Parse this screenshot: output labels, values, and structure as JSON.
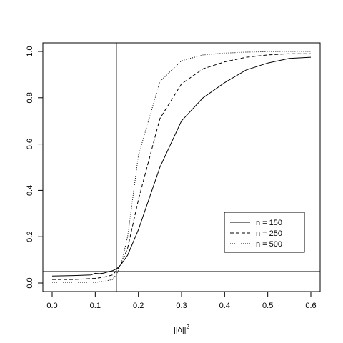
{
  "chart_data": {
    "type": "line",
    "title": "",
    "xlabel": "||δ||",
    "xlabel_superscript": "2",
    "ylabel": "",
    "xlim": [
      0.0,
      0.6
    ],
    "ylim": [
      0.0,
      1.0
    ],
    "x_ticks": [
      "0.0",
      "0.1",
      "0.2",
      "0.3",
      "0.4",
      "0.5",
      "0.6"
    ],
    "y_ticks": [
      "0.0",
      "0.2",
      "0.4",
      "0.6",
      "0.8",
      "1.0"
    ],
    "grid": false,
    "legend_position": "bottom-right",
    "reference_lines": [
      {
        "orientation": "vertical",
        "value": 0.15,
        "color": "#999999"
      },
      {
        "orientation": "horizontal",
        "value": 0.05,
        "color": "#555555"
      }
    ],
    "series": [
      {
        "name": "n = 150",
        "line_style": "solid",
        "x": [
          0.0,
          0.05,
          0.09,
          0.1,
          0.11,
          0.12,
          0.13,
          0.14,
          0.15,
          0.16,
          0.175,
          0.2,
          0.25,
          0.3,
          0.35,
          0.4,
          0.45,
          0.5,
          0.55,
          0.6
        ],
        "y": [
          0.03,
          0.032,
          0.035,
          0.042,
          0.04,
          0.043,
          0.048,
          0.053,
          0.062,
          0.08,
          0.12,
          0.23,
          0.5,
          0.7,
          0.8,
          0.865,
          0.92,
          0.95,
          0.97,
          0.975
        ]
      },
      {
        "name": "n = 250",
        "line_style": "dashed",
        "x": [
          0.0,
          0.05,
          0.1,
          0.12,
          0.14,
          0.15,
          0.16,
          0.175,
          0.2,
          0.25,
          0.3,
          0.35,
          0.4,
          0.45,
          0.5,
          0.55,
          0.6
        ],
        "y": [
          0.015,
          0.015,
          0.02,
          0.025,
          0.035,
          0.055,
          0.08,
          0.15,
          0.36,
          0.71,
          0.86,
          0.925,
          0.955,
          0.975,
          0.985,
          0.99,
          0.99
        ]
      },
      {
        "name": "n = 500",
        "line_style": "dotted",
        "x": [
          0.0,
          0.05,
          0.1,
          0.12,
          0.14,
          0.15,
          0.16,
          0.175,
          0.2,
          0.25,
          0.3,
          0.35,
          0.4,
          0.45,
          0.5,
          0.55,
          0.6
        ],
        "y": [
          0.003,
          0.003,
          0.003,
          0.007,
          0.015,
          0.04,
          0.08,
          0.2,
          0.55,
          0.87,
          0.96,
          0.985,
          0.993,
          0.997,
          0.999,
          1.0,
          1.0
        ]
      }
    ]
  }
}
